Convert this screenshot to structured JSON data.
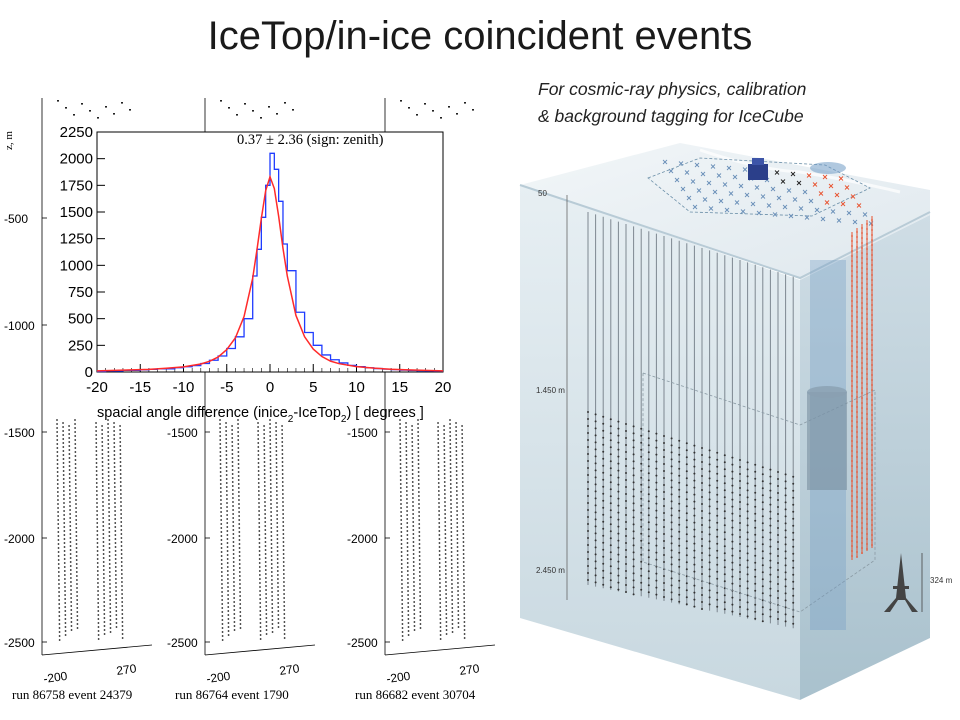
{
  "title": "IceTop/in-ice coincident events",
  "caption": {
    "line1": "For cosmic-ray physics, calibration",
    "line2": "& background tagging for IceCube"
  },
  "event_panels": {
    "axis_label": "z, m",
    "y_ticks": [
      "-500",
      "-1000",
      "-1500",
      "-2000",
      "-2500"
    ],
    "x_ticks": [
      "-200",
      "270"
    ],
    "panels": [
      {
        "run": "run 86758",
        "event": "event 24379"
      },
      {
        "run": "run 86764",
        "event": "event 1790"
      },
      {
        "run": "run 86682",
        "event": "event 30704"
      }
    ]
  },
  "chart_data": {
    "type": "line",
    "annotation": "0.37 ± 2.36 (sign: zenith)",
    "xlabel_parts": {
      "pre": "spacial angle difference (inice",
      "sub1": "2",
      "mid": "-IceTop",
      "sub2": "2",
      "post": ") [ degrees ]"
    },
    "xlim": [
      -20,
      20
    ],
    "ylim": [
      0,
      2250
    ],
    "x_ticks": [
      -20,
      -15,
      -10,
      -5,
      0,
      5,
      10,
      15,
      20
    ],
    "y_ticks": [
      0,
      250,
      500,
      750,
      1000,
      1250,
      1500,
      1750,
      2000,
      2250
    ],
    "series": [
      {
        "style": "histogram",
        "color": "#1f3cff",
        "x": [
          -20,
          -19,
          -18,
          -17,
          -16,
          -15,
          -14,
          -13,
          -12,
          -11,
          -10,
          -9,
          -8,
          -7,
          -6,
          -5,
          -4,
          -3,
          -2,
          -1.5,
          -1,
          -0.5,
          0,
          0.5,
          1,
          1.5,
          2,
          3,
          4,
          5,
          6,
          7,
          8,
          9,
          10,
          11,
          12,
          13,
          14,
          15,
          16,
          17,
          18,
          19,
          20
        ],
        "y": [
          5,
          10,
          10,
          15,
          15,
          20,
          25,
          30,
          30,
          40,
          50,
          60,
          80,
          110,
          150,
          220,
          330,
          500,
          900,
          1150,
          1450,
          1750,
          2050,
          1900,
          1600,
          1200,
          950,
          560,
          370,
          250,
          160,
          115,
          85,
          62,
          50,
          40,
          32,
          27,
          22,
          18,
          14,
          12,
          10,
          8,
          5
        ]
      },
      {
        "style": "fit",
        "color": "#ff2a2a",
        "x": [
          -20,
          -18,
          -16,
          -14,
          -12,
          -10,
          -8,
          -7,
          -6,
          -5,
          -4,
          -3,
          -2,
          -1.5,
          -1,
          -0.5,
          0,
          0.5,
          1,
          1.5,
          2,
          3,
          4,
          5,
          6,
          7,
          8,
          10,
          12,
          14,
          16,
          18,
          20
        ],
        "y": [
          10,
          15,
          20,
          25,
          35,
          48,
          75,
          100,
          140,
          210,
          320,
          520,
          880,
          1150,
          1440,
          1700,
          1830,
          1720,
          1460,
          1160,
          900,
          530,
          330,
          215,
          145,
          102,
          78,
          50,
          36,
          26,
          20,
          15,
          10
        ]
      }
    ]
  },
  "detector": {
    "depth_labels": [
      "50",
      "1.450 m",
      "2.450 m"
    ],
    "height_label": "324 m"
  }
}
